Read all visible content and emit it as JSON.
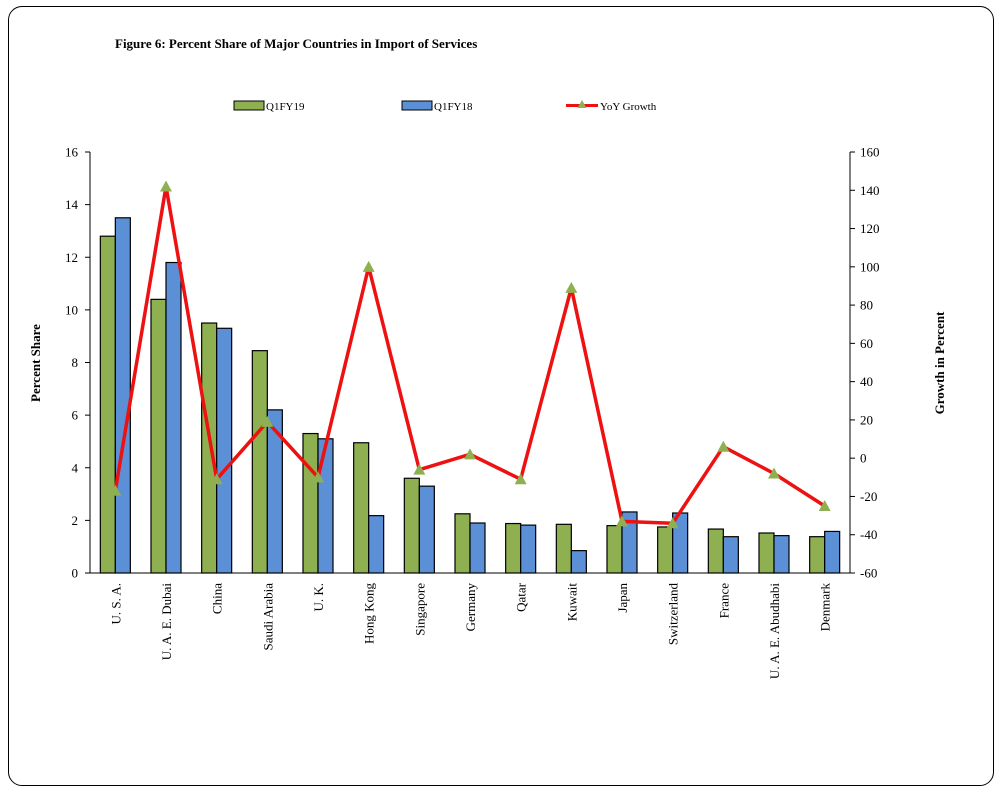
{
  "chart_data": {
    "type": "bar",
    "title": "Figure 6: Percent Share of Major Countries in Import of Services",
    "ylabel": "Percent Share",
    "y2label": "Growth in Percent",
    "ylim": [
      0,
      16
    ],
    "y2lim": [
      -60,
      160
    ],
    "yticks": [
      "0",
      "2",
      "4",
      "6",
      "8",
      "10",
      "12",
      "14",
      "16"
    ],
    "y2ticks": [
      "-60",
      "-40",
      "-20",
      "0",
      "20",
      "40",
      "60",
      "80",
      "100",
      "120",
      "140",
      "160"
    ],
    "legend_position": "top",
    "grid": false,
    "categories": [
      "U. S. A.",
      "U. A. E. Dubai",
      "China",
      "Saudi Arabia",
      "U. K.",
      "Hong Kong",
      "Singapore",
      "Germany",
      "Qatar",
      "Kuwait",
      "Japan",
      "Switzerland",
      "France",
      "U. A. E. Abudhabi",
      "Denmark"
    ],
    "series": [
      {
        "name": "Q1FY19",
        "type": "bar",
        "axis": "left",
        "color": "#8fb050",
        "values": [
          12.8,
          10.4,
          9.5,
          8.45,
          5.3,
          4.95,
          3.6,
          2.25,
          1.88,
          1.85,
          1.8,
          1.75,
          1.67,
          1.52,
          1.38
        ]
      },
      {
        "name": "Q1FY18",
        "type": "bar",
        "axis": "left",
        "color": "#5b8fd6",
        "values": [
          13.5,
          11.8,
          9.3,
          6.2,
          5.1,
          2.18,
          3.3,
          1.9,
          1.82,
          0.85,
          2.32,
          2.28,
          1.38,
          1.42,
          1.58
        ]
      },
      {
        "name": "YoY Growth",
        "type": "line",
        "axis": "right",
        "color": "#ee1111",
        "marker_color": "#8fb050",
        "values": [
          -17,
          142,
          -11,
          19,
          -10,
          100,
          -6,
          2,
          -11,
          89,
          -33,
          -34,
          6,
          -8,
          -25
        ]
      }
    ]
  }
}
